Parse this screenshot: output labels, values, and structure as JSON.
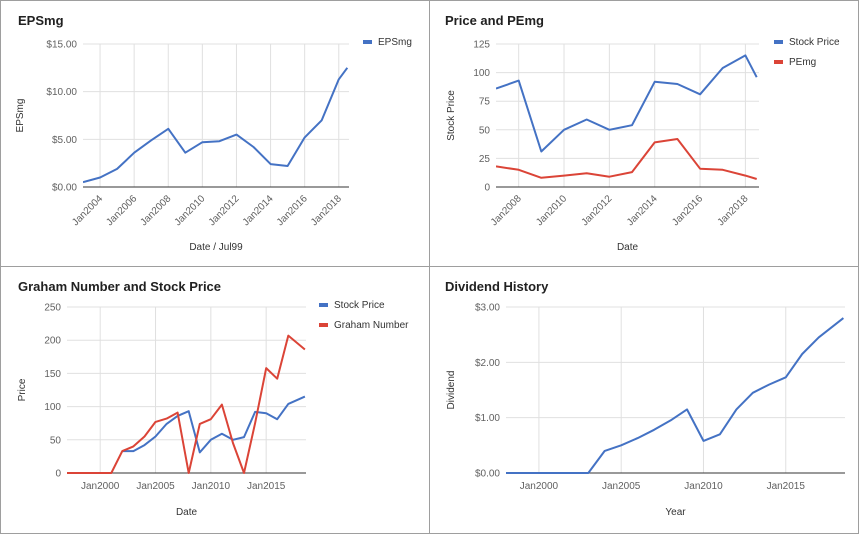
{
  "chart_data": [
    {
      "type": "line",
      "title": "EPSmg",
      "xlabel": "Date / Jul99",
      "ylabel": "EPSmg",
      "x_axis": "date",
      "xlim": [
        2003,
        2018.6
      ],
      "ylim": [
        0,
        15
      ],
      "x_ticks": [
        2004,
        2006,
        2008,
        2010,
        2012,
        2014,
        2016,
        2018
      ],
      "x_tick_labels": [
        "Jan2004",
        "Jan2006",
        "Jan2008",
        "Jan2010",
        "Jan2012",
        "Jan2014",
        "Jan2016",
        "Jan2018"
      ],
      "y_ticks": [
        0,
        5,
        10,
        15
      ],
      "y_tick_labels": [
        "$0.00",
        "$5.00",
        "$10.00",
        "$15.00"
      ],
      "grid": true,
      "legend": "right",
      "series": [
        {
          "name": "EPSmg",
          "color": "#4472c4",
          "x": [
            2003.0,
            2004.0,
            2005.0,
            2006.0,
            2007.0,
            2008.0,
            2009.0,
            2010.0,
            2011.0,
            2012.0,
            2013.0,
            2014.0,
            2015.0,
            2016.0,
            2017.0,
            2018.0,
            2018.5
          ],
          "y": [
            0.5,
            1.0,
            1.9,
            3.6,
            4.9,
            6.1,
            3.6,
            4.7,
            4.8,
            5.5,
            4.2,
            2.4,
            2.2,
            5.2,
            7.0,
            11.3,
            12.5
          ]
        }
      ]
    },
    {
      "type": "line",
      "title": "Price and PEmg",
      "xlabel": "Date",
      "ylabel": "Stock Price",
      "x_axis": "date",
      "xlim": [
        2007,
        2018.6
      ],
      "ylim": [
        0,
        125
      ],
      "x_ticks": [
        2008,
        2010,
        2012,
        2014,
        2016,
        2018
      ],
      "x_tick_labels": [
        "Jan2008",
        "Jan2010",
        "Jan2012",
        "Jan2014",
        "Jan2016",
        "Jan2018"
      ],
      "y_ticks": [
        0,
        25,
        50,
        75,
        100,
        125
      ],
      "y_tick_labels": [
        "0",
        "25",
        "50",
        "75",
        "100",
        "125"
      ],
      "grid": true,
      "legend": "right",
      "series": [
        {
          "name": "Stock Price",
          "color": "#4472c4",
          "x": [
            2007.0,
            2008.0,
            2009.0,
            2010.0,
            2011.0,
            2012.0,
            2013.0,
            2014.0,
            2015.0,
            2016.0,
            2017.0,
            2018.0,
            2018.5
          ],
          "y": [
            86,
            93,
            31,
            50,
            59,
            50,
            54,
            92,
            90,
            81,
            104,
            115,
            96
          ]
        },
        {
          "name": "PEmg",
          "color": "#db4437",
          "x": [
            2007.0,
            2008.0,
            2009.0,
            2010.0,
            2011.0,
            2012.0,
            2013.0,
            2014.0,
            2015.0,
            2016.0,
            2017.0,
            2018.0,
            2018.5
          ],
          "y": [
            18,
            15,
            8,
            10,
            12,
            9,
            13,
            39,
            42,
            16,
            15,
            10,
            7
          ]
        }
      ]
    },
    {
      "type": "line",
      "title": "Graham Number and Stock Price",
      "xlabel": "Date",
      "ylabel": "Price",
      "x_axis": "date",
      "xlim": [
        1997,
        2018.6
      ],
      "ylim": [
        0,
        250
      ],
      "x_ticks": [
        2000,
        2005,
        2010,
        2015
      ],
      "x_tick_labels": [
        "Jan2000",
        "Jan2005",
        "Jan2010",
        "Jan2015"
      ],
      "y_ticks": [
        0,
        50,
        100,
        150,
        200,
        250
      ],
      "y_tick_labels": [
        "0",
        "50",
        "100",
        "150",
        "200",
        "250"
      ],
      "grid": true,
      "legend": "right",
      "series": [
        {
          "name": "Stock Price",
          "color": "#4472c4",
          "x": [
            2002.0,
            2003.0,
            2004.0,
            2005.0,
            2006.0,
            2007.0,
            2008.0,
            2009.0,
            2010.0,
            2011.0,
            2012.0,
            2013.0,
            2014.0,
            2015.0,
            2016.0,
            2017.0,
            2018.5
          ],
          "y": [
            33,
            33,
            42,
            55,
            74,
            86,
            93,
            31,
            50,
            59,
            50,
            54,
            92,
            90,
            81,
            104,
            115
          ]
        },
        {
          "name": "Graham Number",
          "color": "#db4437",
          "x": [
            1997.0,
            2001.0,
            2002.0,
            2003.0,
            2004.0,
            2005.0,
            2006.0,
            2007.0,
            2008.0,
            2009.0,
            2010.0,
            2011.0,
            2012.0,
            2013.0,
            2014.0,
            2015.0,
            2016.0,
            2017.0,
            2018.5
          ],
          "y": [
            0,
            0,
            33,
            40,
            55,
            77,
            82,
            91,
            0,
            74,
            81,
            103,
            45,
            0,
            75,
            158,
            142,
            207,
            186
          ]
        }
      ]
    },
    {
      "type": "line",
      "title": "Dividend History",
      "xlabel": "Year",
      "ylabel": "Dividend",
      "x_axis": "date",
      "xlim": [
        1998,
        2018.6
      ],
      "ylim": [
        0,
        3
      ],
      "x_ticks": [
        2000,
        2005,
        2010,
        2015
      ],
      "x_tick_labels": [
        "Jan2000",
        "Jan2005",
        "Jan2010",
        "Jan2015"
      ],
      "y_ticks": [
        0,
        1,
        2,
        3
      ],
      "y_tick_labels": [
        "$0.00",
        "$1.00",
        "$2.00",
        "$3.00"
      ],
      "grid": true,
      "legend": "none",
      "series": [
        {
          "color": "#4472c4",
          "x": [
            1998.0,
            2000.0,
            2001.0,
            2002.0,
            2003.0,
            2004.0,
            2005.0,
            2006.0,
            2007.0,
            2008.0,
            2009.0,
            2010.0,
            2011.0,
            2012.0,
            2013.0,
            2014.0,
            2015.0,
            2016.0,
            2017.0,
            2018.5
          ],
          "y": [
            0,
            0,
            0,
            0,
            0,
            0.4,
            0.5,
            0.63,
            0.78,
            0.95,
            1.15,
            0.58,
            0.7,
            1.15,
            1.45,
            1.6,
            1.73,
            2.15,
            2.45,
            2.8
          ]
        }
      ]
    }
  ]
}
